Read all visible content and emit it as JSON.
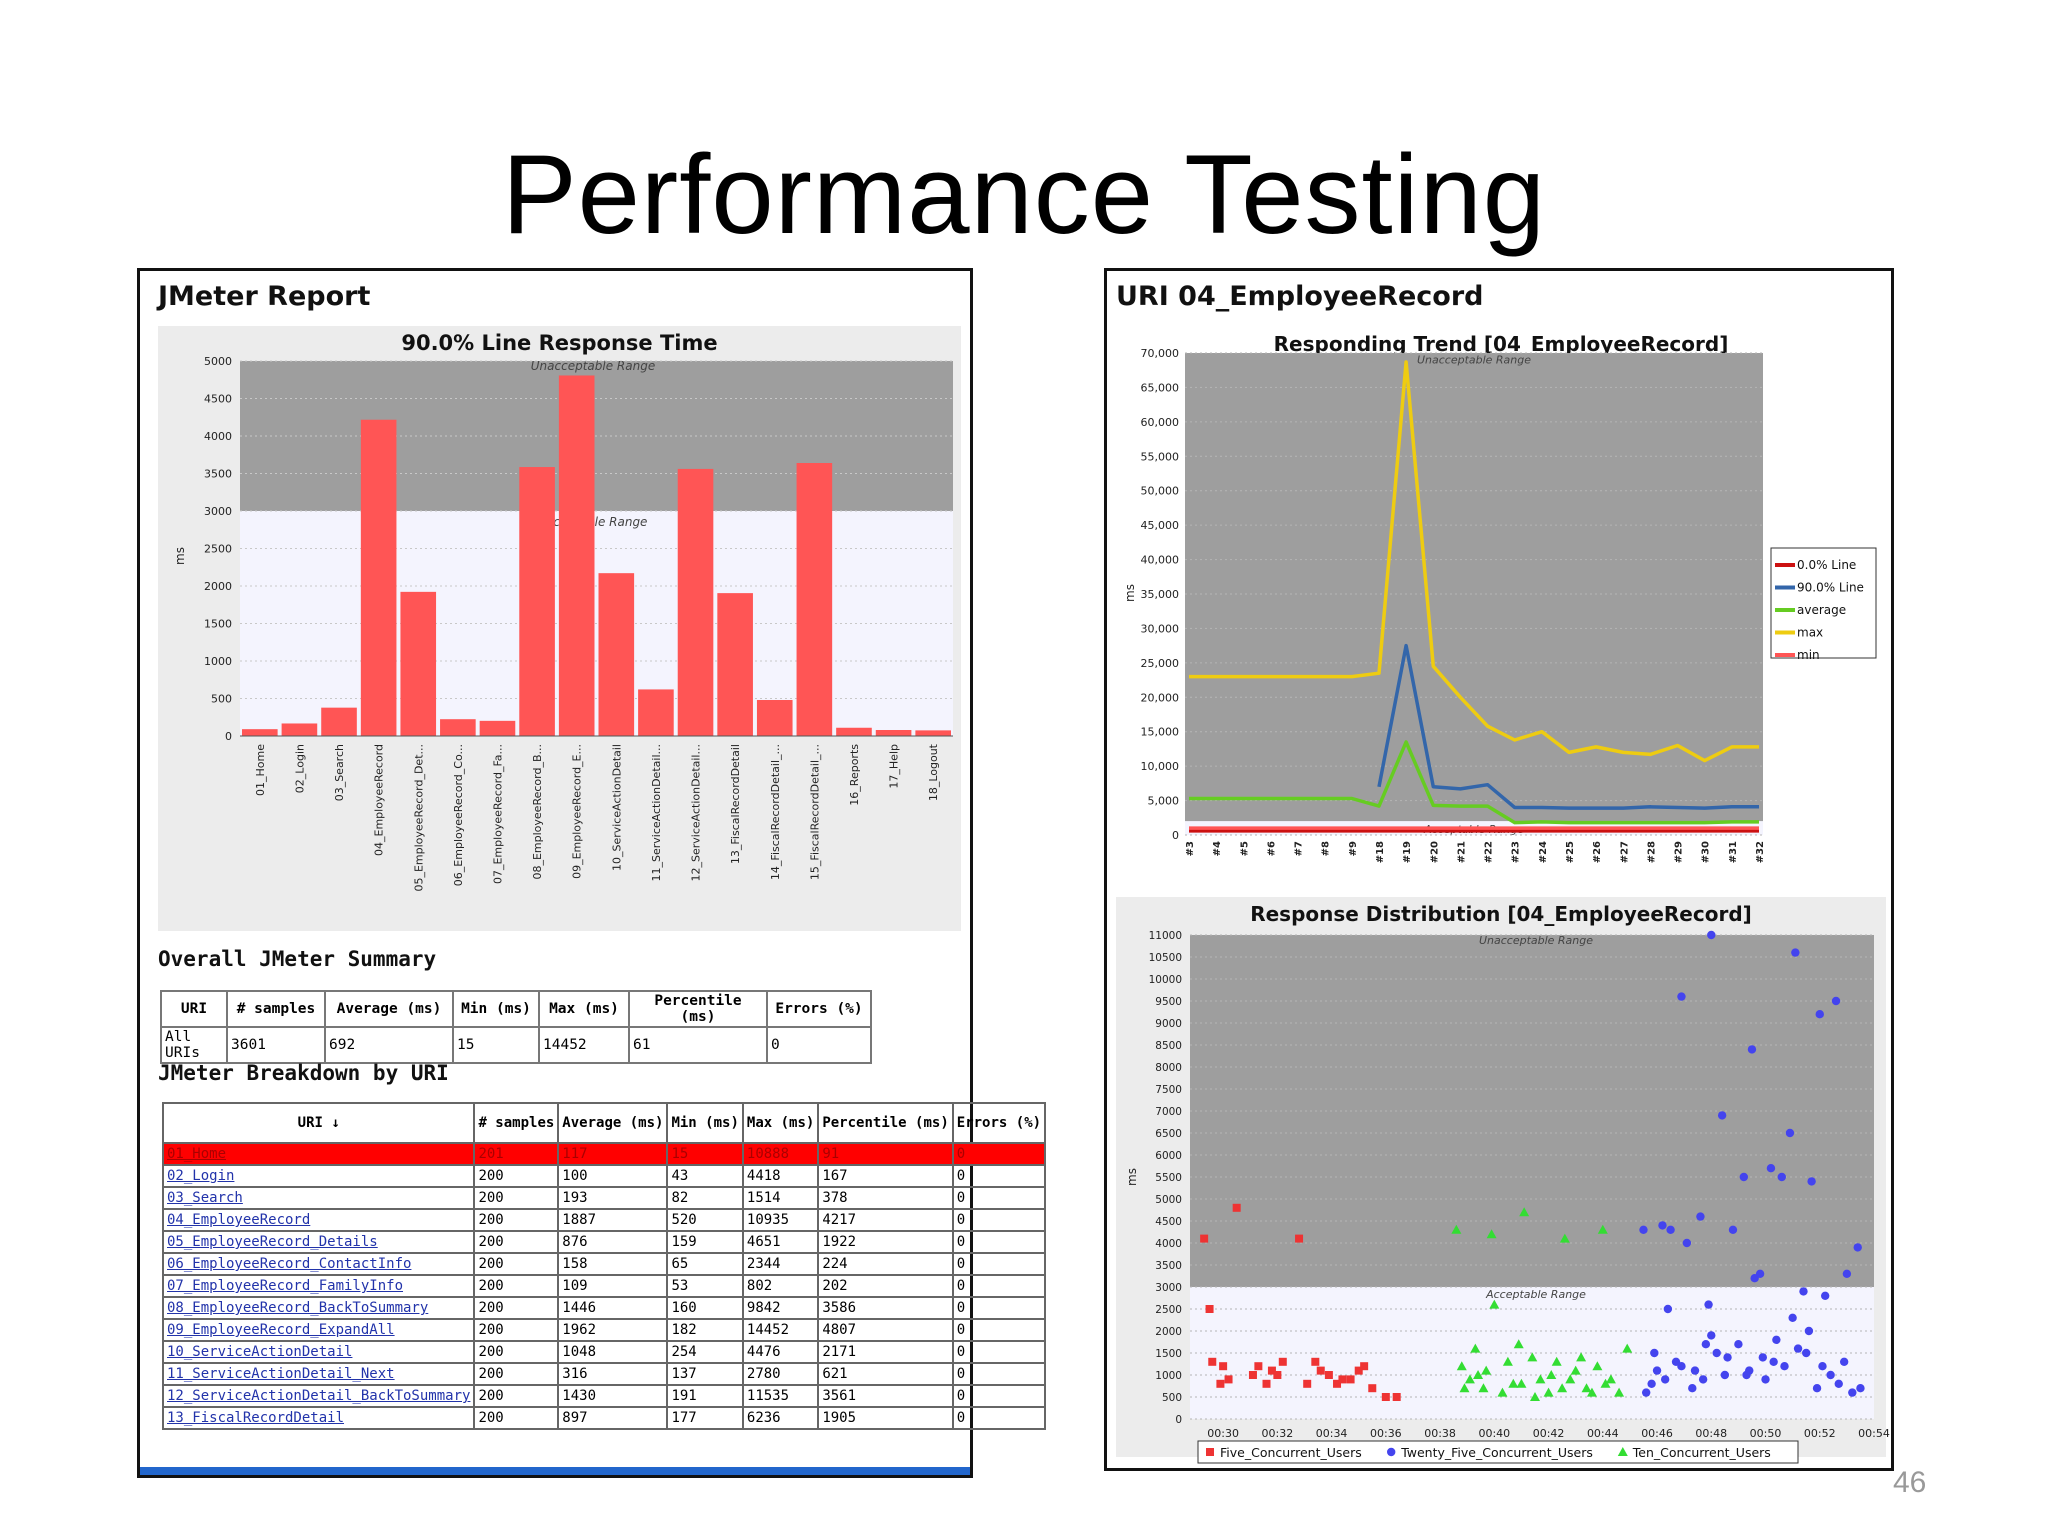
{
  "slide": {
    "title": "Performance Testing",
    "page_number": "46"
  },
  "left_panel": {
    "heading": "JMeter Report",
    "chart_title": "90.0% Line Response Time",
    "summary_heading": "Overall JMeter Summary",
    "breakdown_heading": "JMeter Breakdown by URI",
    "summary": {
      "headers": [
        "URI",
        "# samples",
        "Average (ms)",
        "Min (ms)",
        "Max (ms)",
        "Percentile (ms)",
        "Errors (%)"
      ],
      "row": [
        "All URIs",
        "3601",
        "692",
        "15",
        "14452",
        "61",
        "0"
      ]
    },
    "breakdown": {
      "headers": [
        "URI ↓",
        "# samples",
        "Average (ms)",
        "Min (ms)",
        "Max (ms)",
        "Percentile (ms)",
        "Errors (%)"
      ],
      "rows": [
        [
          "01_Home",
          "201",
          "117",
          "15",
          "10888",
          "91",
          "0"
        ],
        [
          "02_Login",
          "200",
          "100",
          "43",
          "4418",
          "167",
          "0"
        ],
        [
          "03_Search",
          "200",
          "193",
          "82",
          "1514",
          "378",
          "0"
        ],
        [
          "04_EmployeeRecord",
          "200",
          "1887",
          "520",
          "10935",
          "4217",
          "0"
        ],
        [
          "05_EmployeeRecord_Details",
          "200",
          "876",
          "159",
          "4651",
          "1922",
          "0"
        ],
        [
          "06_EmployeeRecord_ContactInfo",
          "200",
          "158",
          "65",
          "2344",
          "224",
          "0"
        ],
        [
          "07_EmployeeRecord_FamilyInfo",
          "200",
          "109",
          "53",
          "802",
          "202",
          "0"
        ],
        [
          "08_EmployeeRecord_BackToSummary",
          "200",
          "1446",
          "160",
          "9842",
          "3586",
          "0"
        ],
        [
          "09_EmployeeRecord_ExpandAll",
          "200",
          "1962",
          "182",
          "14452",
          "4807",
          "0"
        ],
        [
          "10_ServiceActionDetail",
          "200",
          "1048",
          "254",
          "4476",
          "2171",
          "0"
        ],
        [
          "11_ServiceActionDetail_Next",
          "200",
          "316",
          "137",
          "2780",
          "621",
          "0"
        ],
        [
          "12_ServiceActionDetail_BackToSummary",
          "200",
          "1430",
          "191",
          "11535",
          "3561",
          "0"
        ],
        [
          "13_FiscalRecordDetail",
          "200",
          "897",
          "177",
          "6236",
          "1905",
          "0"
        ]
      ]
    }
  },
  "right_panel": {
    "heading": "URI 04_EmployeeRecord"
  },
  "chart_data": [
    {
      "type": "bar",
      "title": "90.0% Line Response Time",
      "xlabel": "",
      "ylabel": "ms",
      "ylim": [
        0,
        5000
      ],
      "yticks": [
        0,
        500,
        1000,
        1500,
        2000,
        2500,
        3000,
        3500,
        4000,
        4500,
        5000
      ],
      "categories": [
        "01_Home",
        "02_Login",
        "03_Search",
        "04_EmployeeRecord",
        "05_EmployeeRecord_Det...",
        "06_EmployeeRecord_Co...",
        "07_EmployeeRecord_Fa...",
        "08_EmployeeRecord_B...",
        "09_EmployeeRecord_E...",
        "10_ServiceActionDetail",
        "11_ServiceActionDetail...",
        "12_ServiceActionDetail...",
        "13_FiscalRecordDetail",
        "14_FiscalRecordDetail_...",
        "15_FiscalRecordDetail_...",
        "16_Reports",
        "17_Help",
        "18_Logout"
      ],
      "values": [
        91,
        167,
        378,
        4217,
        1922,
        224,
        202,
        3586,
        4807,
        2171,
        621,
        3561,
        1905,
        480,
        3640,
        110,
        80,
        75
      ],
      "bands": [
        {
          "label": "Unacceptable Range",
          "from": 3000,
          "to": 5000,
          "color": "#9e9e9e"
        },
        {
          "label": "Acceptable Range",
          "from": 0,
          "to": 3000,
          "color": "#f4f4fe"
        }
      ],
      "colors": {
        "bar": "#ff5555"
      },
      "grid": true
    },
    {
      "type": "line",
      "title": "Responding Trend [04_EmployeeRecord]",
      "xlabel": "",
      "ylabel": "ms",
      "ylim": [
        0,
        70000
      ],
      "yticks": [
        0,
        5000,
        10000,
        15000,
        20000,
        25000,
        30000,
        35000,
        40000,
        45000,
        50000,
        55000,
        60000,
        65000,
        70000
      ],
      "ytick_labels": [
        "0",
        "5,000",
        "10,000",
        "15,000",
        "20,000",
        "25,000",
        "30,000",
        "35,000",
        "40,000",
        "45,000",
        "50,000",
        "55,000",
        "60,000",
        "65,000",
        "70,000"
      ],
      "categories": [
        "#3",
        "#4",
        "#5",
        "#6",
        "#7",
        "#8",
        "#9",
        "#18",
        "#19",
        "#20",
        "#21",
        "#22",
        "#23",
        "#24",
        "#25",
        "#26",
        "#27",
        "#28",
        "#29",
        "#30",
        "#31",
        "#32"
      ],
      "bands": [
        {
          "label": "Unacceptable Range",
          "from": 2000,
          "to": 70000,
          "color": "#9e9e9e"
        },
        {
          "label": "Acceptable Range",
          "from": 0,
          "to": 2000,
          "color": "#f4f4fe"
        }
      ],
      "legend_position": "right",
      "series": [
        {
          "name": "0.0% Line",
          "color": "#cc1111",
          "values": [
            600,
            600,
            600,
            600,
            600,
            600,
            600,
            600,
            600,
            600,
            600,
            600,
            600,
            600,
            600,
            600,
            600,
            600,
            600,
            600,
            600,
            600
          ]
        },
        {
          "name": "90.0% Line",
          "color": "#3366aa",
          "values": [
            null,
            null,
            null,
            null,
            null,
            null,
            null,
            7000,
            27500,
            7000,
            6700,
            7300,
            4000,
            4000,
            3900,
            3900,
            3900,
            4100,
            4000,
            3900,
            4100,
            4100
          ]
        },
        {
          "name": "average",
          "color": "#66cc22",
          "values": [
            5300,
            5300,
            5300,
            5300,
            5300,
            5300,
            5300,
            4200,
            13500,
            4300,
            4200,
            4200,
            1800,
            1900,
            1800,
            1800,
            1800,
            1800,
            1800,
            1800,
            1900,
            1900
          ]
        },
        {
          "name": "max",
          "color": "#eecc11",
          "values": [
            23000,
            23000,
            23000,
            23000,
            23000,
            23000,
            23000,
            23500,
            68700,
            24500,
            20000,
            15800,
            13800,
            15000,
            12000,
            12800,
            12000,
            11700,
            13000,
            10800,
            12800,
            12800
          ]
        },
        {
          "name": "min",
          "color": "#ff5555",
          "values": [
            1000,
            1000,
            1000,
            1000,
            1000,
            1000,
            1000,
            1000,
            1000,
            1000,
            1000,
            1000,
            1000,
            1000,
            1000,
            1000,
            1000,
            1000,
            1000,
            1000,
            1000,
            1000
          ]
        }
      ],
      "grid": true
    },
    {
      "type": "scatter",
      "title": "Response Distribution [04_EmployeeRecord]",
      "xlabel": "",
      "ylabel": "ms",
      "xlim": [
        0,
        25
      ],
      "ylim": [
        0,
        11000
      ],
      "yticks": [
        0,
        500,
        1000,
        1500,
        2000,
        2500,
        3000,
        3500,
        4000,
        4500,
        5000,
        5500,
        6000,
        6500,
        7000,
        7500,
        8000,
        8500,
        9000,
        9500,
        10000,
        10500,
        11000
      ],
      "xticks": [
        1,
        3,
        5,
        7,
        9,
        11,
        13,
        15,
        17,
        19,
        21,
        23,
        25
      ],
      "xtick_labels": [
        "00:30",
        "00:32",
        "00:34",
        "00:36",
        "00:38",
        "00:40",
        "00:42",
        "00:44",
        "00:46",
        "00:48",
        "00:50",
        "00:52",
        "00:54"
      ],
      "bands": [
        {
          "label": "Unacceptable Range",
          "from": 3000,
          "to": 11000,
          "color": "#9e9e9e"
        },
        {
          "label": "Acceptable Range",
          "from": 0,
          "to": 3000,
          "color": "#f4f4fe"
        }
      ],
      "legend_position": "bottom",
      "series": [
        {
          "name": "Five_Concurrent_Users",
          "color": "#ee3333",
          "marker": "square",
          "x": [
            0.3,
            0.5,
            1.0,
            1.5,
            2.3,
            2.6,
            2.8,
            3.2,
            3.8,
            4.1,
            4.6,
            4.9,
            5.2,
            5.7,
            6.2,
            6.5,
            7.0,
            1.2,
            0.6,
            3.0,
            4.4,
            5.4,
            6.0,
            7.4,
            2.1,
            0.9
          ],
          "y": [
            4100,
            2500,
            1200,
            4800,
            1200,
            800,
            1100,
            1300,
            4100,
            800,
            1100,
            1000,
            800,
            900,
            1200,
            700,
            500,
            900,
            1300,
            1000,
            1300,
            900,
            1100,
            500,
            1000,
            800
          ]
        },
        {
          "name": "Ten_Concurrent_Users",
          "color": "#33dd33",
          "marker": "triangle",
          "x": [
            9.6,
            10.9,
            12.1,
            13.6,
            15.0,
            11.0,
            9.8,
            10.3,
            10.6,
            11.3,
            11.7,
            12.4,
            12.7,
            13.0,
            13.3,
            14.0,
            14.4,
            14.8,
            15.3,
            15.9,
            9.9,
            10.1,
            10.7,
            11.5,
            12.0,
            12.5,
            13.1,
            13.8,
            14.2,
            14.6,
            15.1,
            15.6,
            10.4,
            11.9,
            13.5
          ],
          "y": [
            4300,
            4200,
            4700,
            4100,
            4300,
            2600,
            1200,
            1600,
            700,
            600,
            800,
            1400,
            900,
            600,
            1300,
            1100,
            700,
            1200,
            900,
            1600,
            700,
            900,
            1100,
            1300,
            800,
            500,
            1000,
            900,
            1400,
            600,
            800,
            600,
            1000,
            1700,
            700
          ]
        },
        {
          "name": "Twenty_Five_Concurrent_Users",
          "color": "#4444ee",
          "marker": "circle",
          "x": [
            19.0,
            22.1,
            17.9,
            20.5,
            23.0,
            23.6,
            19.4,
            21.9,
            17.5,
            20.2,
            21.6,
            21.2,
            22.7,
            17.2,
            18.6,
            19.8,
            16.5,
            18.1,
            20.8,
            24.0,
            24.4,
            17.4,
            18.9,
            20.6,
            22.4,
            23.2,
            16.8,
            17.9,
            19.2,
            20.3,
            21.4,
            22.9,
            23.9,
            16.6,
            18.4,
            19.6,
            21.0,
            22.2,
            23.4,
            24.5,
            17.7,
            18.7,
            20.0,
            21.7,
            22.6,
            23.7,
            17.0,
            19.0,
            20.9,
            22.0,
            16.9,
            18.3,
            19.5,
            21.3,
            23.1,
            24.2,
            17.3,
            18.8,
            20.4,
            22.5
          ],
          "y": [
            11000,
            10600,
            9600,
            8400,
            9200,
            9500,
            6900,
            6500,
            4300,
            5500,
            5500,
            5700,
            5400,
            4400,
            4600,
            4300,
            4300,
            4000,
            3300,
            3300,
            3900,
            2500,
            2600,
            3200,
            2900,
            2800,
            800,
            1200,
            1500,
            1000,
            1800,
            700,
            1300,
            600,
            1100,
            1400,
            900,
            1600,
            1000,
            700,
            1300,
            900,
            1700,
            1200,
            2000,
            800,
            1100,
            1900,
            1400,
            2300,
            1500,
            700,
            1000,
            1300,
            1200,
            600,
            900,
            1700,
            1100,
            1500
          ]
        }
      ],
      "grid": true
    }
  ]
}
